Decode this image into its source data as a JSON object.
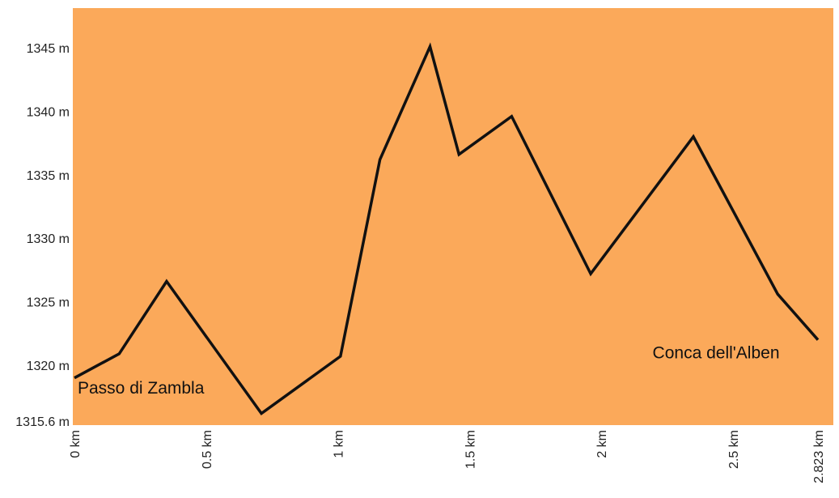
{
  "chart_data": {
    "type": "line",
    "title": "",
    "xlabel": "",
    "ylabel": "",
    "xlim": [
      0,
      2.823
    ],
    "ylim": [
      1315.6,
      1348
    ],
    "background_color": "#FBA95A",
    "line_color": "#111111",
    "grid": false,
    "legend": "none",
    "x_ticks": [
      {
        "value": 0,
        "label": "0 km"
      },
      {
        "value": 0.5,
        "label": "0.5 km"
      },
      {
        "value": 1,
        "label": "1 km"
      },
      {
        "value": 1.5,
        "label": "1.5 km"
      },
      {
        "value": 2,
        "label": "2 km"
      },
      {
        "value": 2.5,
        "label": "2.5 km"
      },
      {
        "value": 2.823,
        "label": "2.823 km"
      }
    ],
    "y_ticks": [
      {
        "value": 1315.6,
        "label": "1315.6 m"
      },
      {
        "value": 1320,
        "label": "1320 m"
      },
      {
        "value": 1325,
        "label": "1325 m"
      },
      {
        "value": 1330,
        "label": "1330 m"
      },
      {
        "value": 1335,
        "label": "1335 m"
      },
      {
        "value": 1340,
        "label": "1340 m"
      },
      {
        "value": 1345,
        "label": "1345 m"
      }
    ],
    "series": [
      {
        "x": [
          0,
          0.17,
          0.35,
          0.71,
          1.01,
          1.16,
          1.35,
          1.46,
          1.66,
          1.96,
          2.35,
          2.67,
          2.823
        ],
        "y": [
          1319.0,
          1320.9,
          1326.6,
          1316.2,
          1320.7,
          1336.2,
          1345.1,
          1336.6,
          1339.6,
          1327.2,
          1338.0,
          1325.6,
          1322.0
        ]
      }
    ],
    "annotations": [
      {
        "text": "Passo di Zambla",
        "x": 0,
        "y": 1318.2,
        "anchor": "start"
      },
      {
        "text": "Conca dell'Alben",
        "x": 2.8,
        "y": 1321.0,
        "anchor": "end"
      }
    ]
  }
}
